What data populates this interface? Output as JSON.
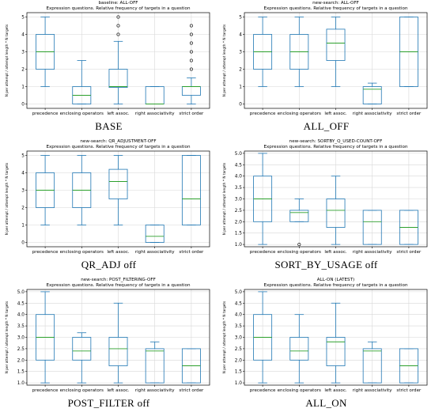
{
  "chart_data": [
    {
      "type": "boxplot",
      "title": "baseline: ALL-OFF",
      "subtitle": "Expression questions. Relative frequency of targets in a question",
      "ylabel": "N per attempt / attempt length * N targets",
      "caption": "BASE",
      "categories": [
        "precedence",
        "enclosing operators",
        "left assoc.",
        "right associativity",
        "strict order"
      ],
      "yticks": [
        0,
        1,
        2,
        3,
        4,
        5
      ],
      "ylim": [
        -0.25,
        5.25
      ],
      "grid": true,
      "boxes": [
        {
          "whislo": 1.0,
          "q1": 2.0,
          "med": 3.0,
          "q3": 4.0,
          "whishi": 5.0,
          "fliers": []
        },
        {
          "whislo": 0.0,
          "q1": 0.0,
          "med": 0.5,
          "q3": 1.0,
          "whishi": 2.5,
          "fliers": []
        },
        {
          "whislo": 0.0,
          "q1": 0.95,
          "med": 1.0,
          "q3": 2.0,
          "whishi": 3.6,
          "fliers": [
            4.0,
            4.5,
            5.0
          ]
        },
        {
          "whislo": 0.0,
          "q1": 0.0,
          "med": 0.0,
          "q3": 1.0,
          "whishi": 1.0,
          "fliers": []
        },
        {
          "whislo": 0.0,
          "q1": 0.5,
          "med": 1.0,
          "q3": 1.0,
          "whishi": 1.5,
          "fliers": [
            2.0,
            2.5,
            3.0,
            3.5,
            4.0,
            4.5
          ]
        }
      ]
    },
    {
      "type": "boxplot",
      "title": "new-search: ALL-OFF",
      "subtitle": "Expression questions. Relative frequency of targets in a question",
      "ylabel": "N per attempt / attempt length * N targets",
      "caption": "ALL_OFF",
      "categories": [
        "precedence",
        "enclosing operators",
        "left assoc.",
        "right associativity",
        "strict order"
      ],
      "yticks": [
        0,
        1,
        2,
        3,
        4,
        5
      ],
      "ylim": [
        -0.25,
        5.25
      ],
      "grid": true,
      "boxes": [
        {
          "whislo": 1.0,
          "q1": 2.0,
          "med": 3.0,
          "q3": 4.0,
          "whishi": 5.0,
          "fliers": []
        },
        {
          "whislo": 1.0,
          "q1": 2.0,
          "med": 3.0,
          "q3": 4.0,
          "whishi": 5.0,
          "fliers": []
        },
        {
          "whislo": 1.0,
          "q1": 2.5,
          "med": 3.5,
          "q3": 4.3,
          "whishi": 5.0,
          "fliers": []
        },
        {
          "whislo": 0.0,
          "q1": 0.0,
          "med": 0.85,
          "q3": 1.0,
          "whishi": 1.2,
          "fliers": []
        },
        {
          "whislo": 1.0,
          "q1": 1.0,
          "med": 3.0,
          "q3": 5.0,
          "whishi": 5.0,
          "fliers": []
        }
      ]
    },
    {
      "type": "boxplot",
      "title": "new-search: QR_ADJUSTMENT-OFF",
      "subtitle": "Expression questions. Relative frequency of targets in a question",
      "ylabel": "N per attempt / attempt length * N targets",
      "caption": "QR_ADJ off",
      "categories": [
        "precedence",
        "enclosing operators",
        "left assoc.",
        "right associativity",
        "strict order"
      ],
      "yticks": [
        0,
        1,
        2,
        3,
        4,
        5
      ],
      "ylim": [
        -0.25,
        5.25
      ],
      "grid": true,
      "boxes": [
        {
          "whislo": 1.0,
          "q1": 2.0,
          "med": 3.0,
          "q3": 4.0,
          "whishi": 5.0,
          "fliers": []
        },
        {
          "whislo": 1.0,
          "q1": 2.0,
          "med": 3.0,
          "q3": 4.0,
          "whishi": 5.0,
          "fliers": []
        },
        {
          "whislo": 1.0,
          "q1": 2.5,
          "med": 3.5,
          "q3": 4.2,
          "whishi": 5.0,
          "fliers": []
        },
        {
          "whislo": 0.0,
          "q1": 0.0,
          "med": 0.35,
          "q3": 1.0,
          "whishi": 1.0,
          "fliers": []
        },
        {
          "whislo": 1.0,
          "q1": 1.0,
          "med": 2.5,
          "q3": 5.0,
          "whishi": 5.0,
          "fliers": []
        }
      ]
    },
    {
      "type": "boxplot",
      "title": "new-search: SORTBY_Q_USED-COUNT-OFF",
      "subtitle": "Expression questions. Relative frequency of targets in a question",
      "ylabel": "N per attempt / attempt length * N targets",
      "caption": "SORT_BY_USAGE off",
      "categories": [
        "precedence",
        "enclosing operators",
        "left assoc.",
        "right associativity",
        "strict order"
      ],
      "yticks": [
        1.0,
        1.5,
        2.0,
        2.5,
        3.0,
        3.5,
        4.0,
        4.5,
        5.0
      ],
      "ylim": [
        0.9,
        5.1
      ],
      "grid": true,
      "boxes": [
        {
          "whislo": 1.0,
          "q1": 2.0,
          "med": 3.0,
          "q3": 4.0,
          "whishi": 5.0,
          "fliers": []
        },
        {
          "whislo": 2.0,
          "q1": 2.0,
          "med": 2.4,
          "q3": 2.5,
          "whishi": 3.0,
          "fliers": [
            1.0
          ]
        },
        {
          "whislo": 1.0,
          "q1": 1.75,
          "med": 2.5,
          "q3": 3.0,
          "whishi": 4.0,
          "fliers": []
        },
        {
          "whislo": 1.0,
          "q1": 1.0,
          "med": 2.0,
          "q3": 2.5,
          "whishi": 2.5,
          "fliers": []
        },
        {
          "whislo": 1.0,
          "q1": 1.0,
          "med": 1.75,
          "q3": 2.5,
          "whishi": 2.5,
          "fliers": []
        }
      ]
    },
    {
      "type": "boxplot",
      "title": "new-search: POST_FILTERING-OFF",
      "subtitle": "Expression questions. Relative frequency of targets in a question",
      "ylabel": "N per attempt / attempt length * N targets",
      "caption": "POST_FILTER off",
      "categories": [
        "precedence",
        "enclosing operators",
        "left assoc.",
        "right associativity",
        "strict order"
      ],
      "yticks": [
        1.0,
        1.5,
        2.0,
        2.5,
        3.0,
        3.5,
        4.0,
        4.5,
        5.0
      ],
      "ylim": [
        0.9,
        5.1
      ],
      "grid": true,
      "boxes": [
        {
          "whislo": 1.0,
          "q1": 2.0,
          "med": 3.0,
          "q3": 4.0,
          "whishi": 5.0,
          "fliers": []
        },
        {
          "whislo": 1.0,
          "q1": 2.0,
          "med": 2.4,
          "q3": 3.0,
          "whishi": 3.2,
          "fliers": []
        },
        {
          "whislo": 1.0,
          "q1": 1.75,
          "med": 2.5,
          "q3": 3.0,
          "whishi": 4.5,
          "fliers": []
        },
        {
          "whislo": 1.0,
          "q1": 1.0,
          "med": 2.4,
          "q3": 2.5,
          "whishi": 2.8,
          "fliers": []
        },
        {
          "whislo": 1.0,
          "q1": 1.0,
          "med": 1.75,
          "q3": 2.5,
          "whishi": 2.5,
          "fliers": []
        }
      ]
    },
    {
      "type": "boxplot",
      "title": "ALL-ON (LATEST)",
      "subtitle": "Expression questions. Relative frequency of targets in a question",
      "ylabel": "N per attempt / attempt length * N targets",
      "caption": "ALL_ON",
      "categories": [
        "precedence",
        "enclosing operators",
        "left assoc.",
        "right associativity",
        "strict order"
      ],
      "yticks": [
        1.0,
        1.5,
        2.0,
        2.5,
        3.0,
        3.5,
        4.0,
        4.5,
        5.0
      ],
      "ylim": [
        0.9,
        5.1
      ],
      "grid": true,
      "boxes": [
        {
          "whislo": 1.0,
          "q1": 2.0,
          "med": 3.0,
          "q3": 4.0,
          "whishi": 5.0,
          "fliers": []
        },
        {
          "whislo": 1.0,
          "q1": 2.0,
          "med": 2.4,
          "q3": 3.0,
          "whishi": 4.0,
          "fliers": []
        },
        {
          "whislo": 1.0,
          "q1": 1.75,
          "med": 2.8,
          "q3": 3.0,
          "whishi": 4.5,
          "fliers": []
        },
        {
          "whislo": 1.0,
          "q1": 1.0,
          "med": 2.4,
          "q3": 2.5,
          "whishi": 2.8,
          "fliers": []
        },
        {
          "whislo": 1.0,
          "q1": 1.0,
          "med": 1.75,
          "q3": 2.5,
          "whishi": 2.5,
          "fliers": []
        }
      ]
    }
  ],
  "colors": {
    "box": "#1f77b4",
    "median": "#2ca02c",
    "grid": "#d8d8d8",
    "axis": "#000000"
  }
}
